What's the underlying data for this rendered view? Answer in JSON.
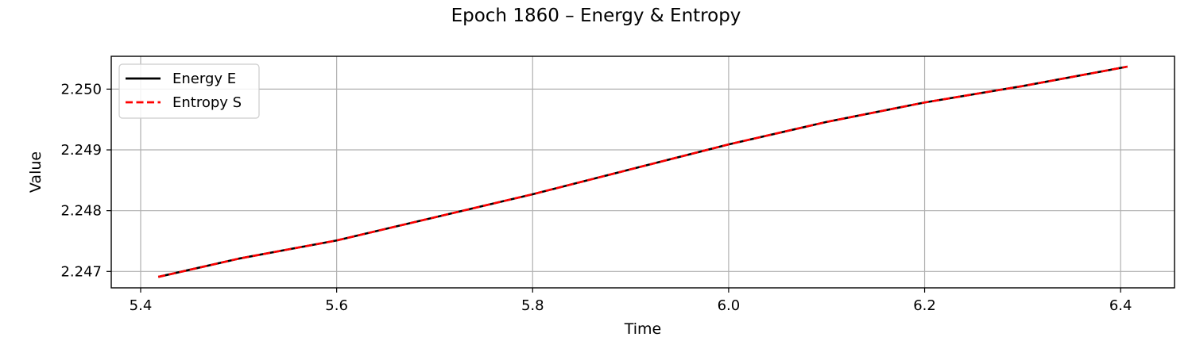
{
  "chart_data": {
    "type": "line",
    "title": "Epoch 1860 – Energy & Entropy",
    "xlabel": "Time",
    "ylabel": "Value",
    "xlim": [
      5.37,
      6.455
    ],
    "ylim": [
      2.24673,
      2.25054
    ],
    "xticks": [
      5.4,
      5.6,
      5.8,
      6.0,
      6.2,
      6.4
    ],
    "xtick_labels": [
      "5.4",
      "5.6",
      "5.8",
      "6.0",
      "6.2",
      "6.4"
    ],
    "yticks": [
      2.247,
      2.248,
      2.249,
      2.25
    ],
    "ytick_labels": [
      "2.247",
      "2.248",
      "2.249",
      "2.250"
    ],
    "grid": true,
    "legend_position": "upper-left",
    "series": [
      {
        "name": "Energy E",
        "color": "#000000",
        "line_style": "solid",
        "x": [
          5.418,
          5.5,
          5.6,
          5.7,
          5.8,
          5.9,
          6.0,
          6.1,
          6.2,
          6.3,
          6.407
        ],
        "y": [
          2.24691,
          2.24721,
          2.24751,
          2.24789,
          2.24827,
          2.24868,
          2.24909,
          2.24946,
          2.24978,
          2.25005,
          2.25037
        ]
      },
      {
        "name": "Entropy S",
        "color": "#ff0000",
        "line_style": "dashed",
        "x": [
          5.418,
          5.5,
          5.6,
          5.7,
          5.8,
          5.9,
          6.0,
          6.1,
          6.2,
          6.3,
          6.407
        ],
        "y": [
          2.24691,
          2.24721,
          2.24751,
          2.24789,
          2.24827,
          2.24868,
          2.24909,
          2.24946,
          2.24978,
          2.25005,
          2.25037
        ]
      }
    ]
  }
}
